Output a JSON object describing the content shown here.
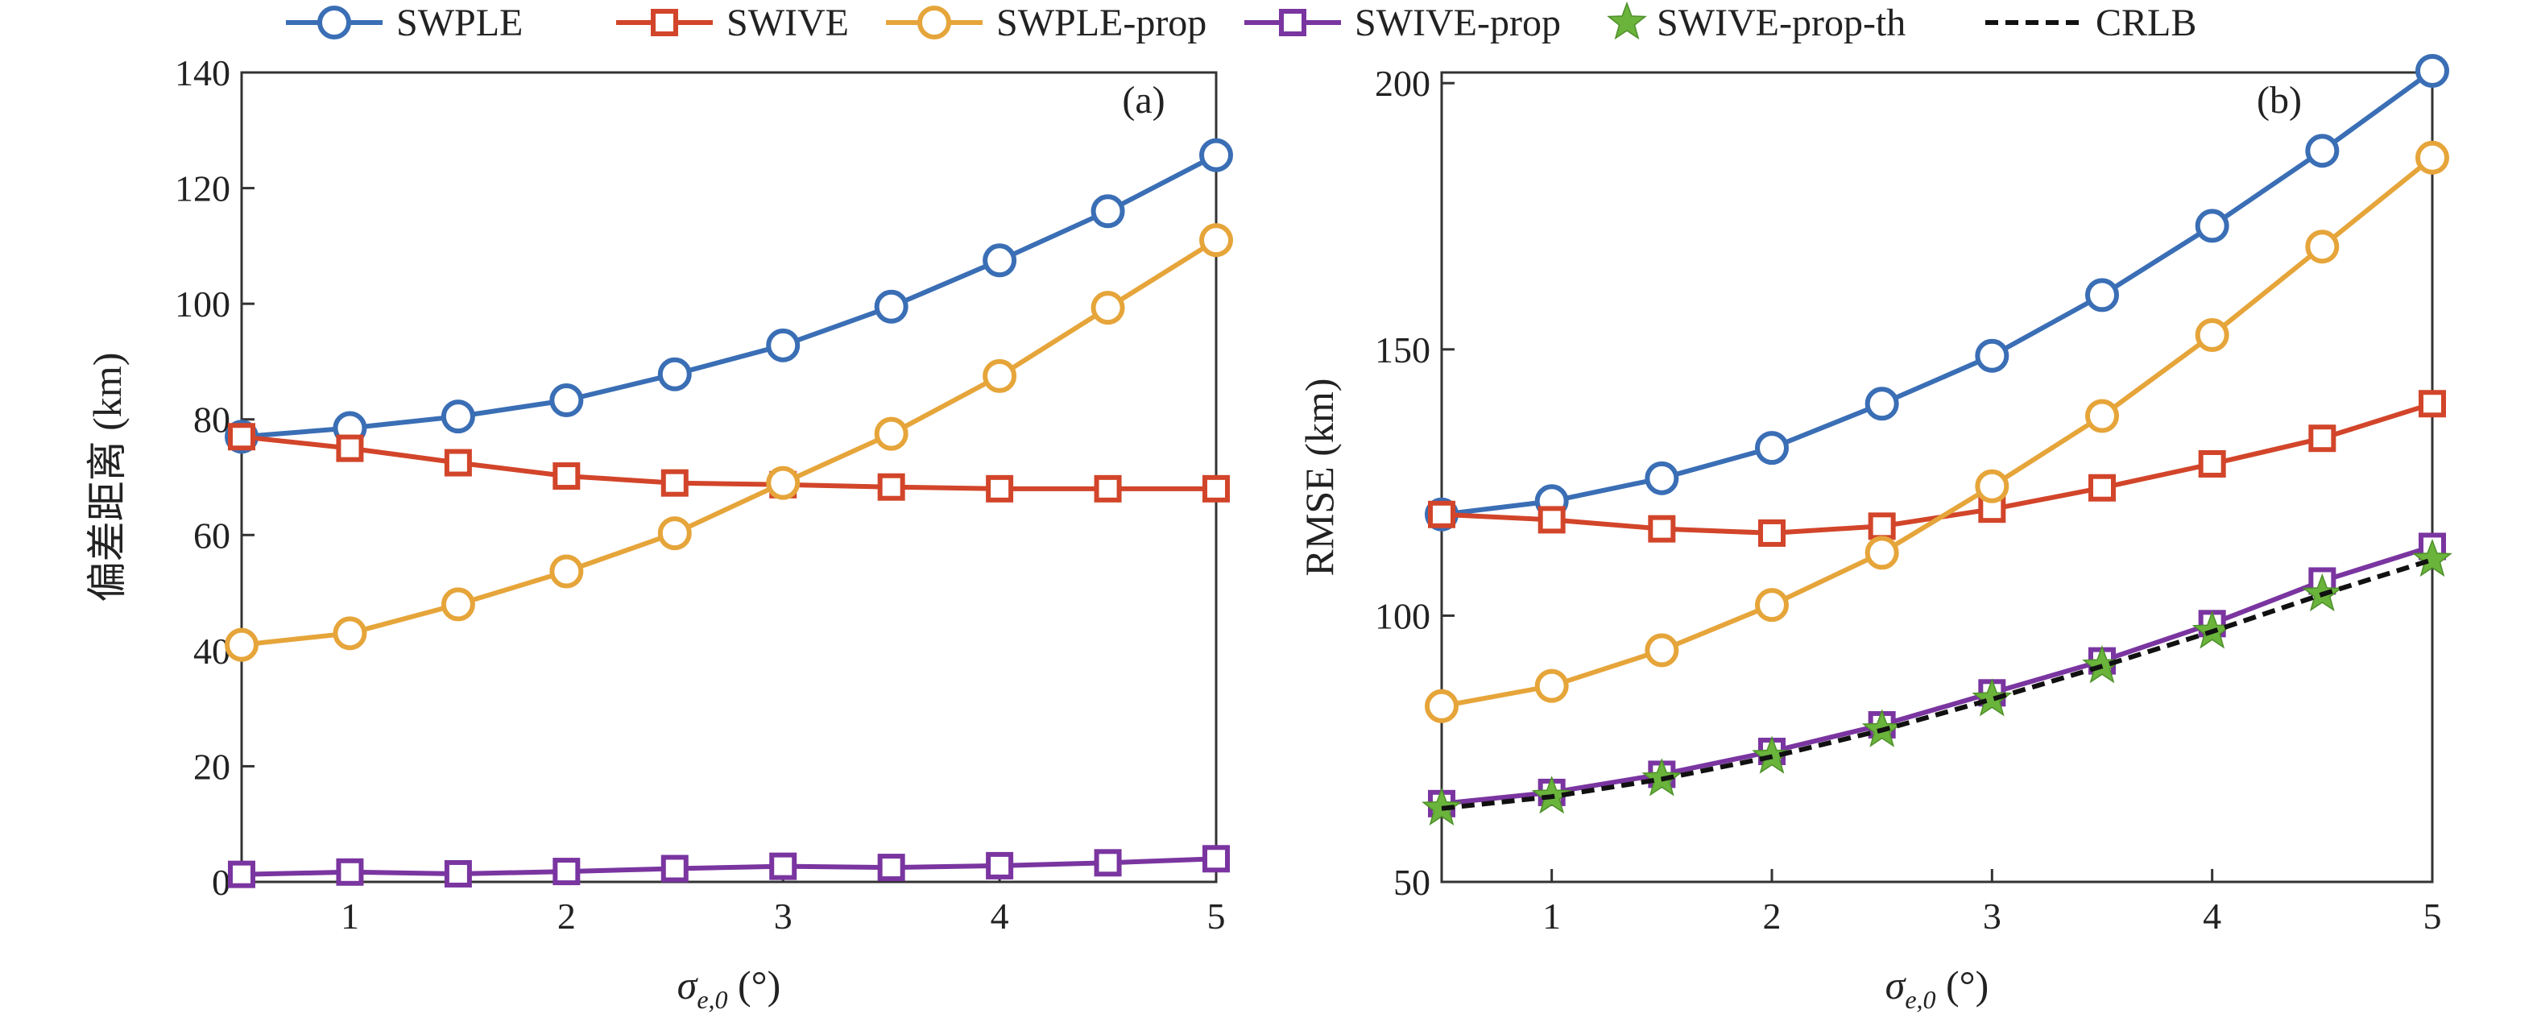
{
  "colors": {
    "SWPLE": "#3a6eb5",
    "SWIVE": "#d2452a",
    "SWPLE-prop": "#e6a53a",
    "SWIVE-prop": "#7a35a0",
    "SWIVE-prop-th": "#6ab43c",
    "CRLB": "#111111"
  },
  "legend": {
    "items": [
      {
        "label": "SWPLE",
        "series": "SWPLE",
        "marker": "circle",
        "dash": false
      },
      {
        "label": "SWIVE",
        "series": "SWIVE",
        "marker": "square",
        "dash": false
      },
      {
        "label": "SWPLE-prop",
        "series": "SWPLE-prop",
        "marker": "circle",
        "dash": false
      },
      {
        "label": "SWIVE-prop",
        "series": "SWIVE-prop",
        "marker": "square",
        "dash": false
      },
      {
        "label": "SWIVE-prop-th",
        "series": "SWIVE-prop-th",
        "marker": "star",
        "dash": false,
        "line": false
      },
      {
        "label": "CRLB",
        "series": "CRLB",
        "marker": "none",
        "dash": true
      }
    ]
  },
  "chart_data": [
    {
      "type": "line",
      "panel_label": "(a)",
      "xlabel": "σe,0 (°)",
      "xlabel_main": "σ",
      "xlabel_sub": "e,0",
      "xlabel_unit": " (°)",
      "ylabel": "偏差距离 (km)",
      "xlim": [
        0.5,
        5
      ],
      "ylim": [
        0,
        140
      ],
      "xticks": [
        1,
        2,
        3,
        4,
        5
      ],
      "yticks": [
        0,
        20,
        40,
        60,
        80,
        100,
        120,
        140
      ],
      "x": [
        0.5,
        1,
        1.5,
        2,
        2.5,
        3,
        3.5,
        4,
        4.5,
        5
      ],
      "series": [
        {
          "name": "SWPLE",
          "marker": "circle",
          "values": [
            77,
            78.5,
            80.5,
            83.3,
            87.8,
            92.8,
            99.5,
            107.5,
            116,
            125.7
          ]
        },
        {
          "name": "SWIVE",
          "marker": "square",
          "values": [
            77,
            75,
            72.5,
            70.2,
            69,
            68.7,
            68.3,
            68,
            68,
            68
          ]
        },
        {
          "name": "SWPLE-prop",
          "marker": "circle",
          "values": [
            41,
            43,
            48,
            53.7,
            60.3,
            69,
            77.5,
            87.5,
            99.3,
            111
          ]
        },
        {
          "name": "SWIVE-prop",
          "marker": "square",
          "values": [
            1.3,
            1.7,
            1.4,
            1.8,
            2.3,
            2.7,
            2.5,
            2.8,
            3.3,
            4
          ]
        }
      ]
    },
    {
      "type": "line",
      "panel_label": "(b)",
      "xlabel": "σe,0 (°)",
      "xlabel_main": "σ",
      "xlabel_sub": "e,0",
      "xlabel_unit": " (°)",
      "ylabel": "RMSE (km)",
      "xlim": [
        0.5,
        5
      ],
      "ylim": [
        50,
        202
      ],
      "xticks": [
        1,
        2,
        3,
        4,
        5
      ],
      "yticks": [
        50,
        100,
        150,
        200
      ],
      "x": [
        0.5,
        1,
        1.5,
        2,
        2.5,
        3,
        3.5,
        4,
        4.5,
        5
      ],
      "series": [
        {
          "name": "SWPLE",
          "marker": "circle",
          "values": [
            119,
            121.5,
            125.8,
            131.5,
            139.8,
            148.8,
            160.2,
            173.2,
            187.3,
            202.3
          ]
        },
        {
          "name": "SWIVE",
          "marker": "square",
          "values": [
            119,
            118,
            116.3,
            115.5,
            116.8,
            120,
            124,
            128.5,
            133.3,
            139.8
          ]
        },
        {
          "name": "SWPLE-prop",
          "marker": "circle",
          "values": [
            83,
            86.8,
            93.5,
            102,
            111.8,
            124.3,
            137.5,
            152.7,
            169.3,
            186
          ]
        },
        {
          "name": "SWIVE-prop",
          "marker": "square",
          "values": [
            64.7,
            66.8,
            70.2,
            74.5,
            79.5,
            85.5,
            91.5,
            98.5,
            106.5,
            113
          ]
        },
        {
          "name": "SWIVE-prop-th",
          "marker": "star",
          "line": false,
          "values": [
            63.8,
            66,
            69.3,
            73.5,
            78.5,
            84.3,
            90.5,
            97,
            104,
            110.5
          ]
        },
        {
          "name": "CRLB",
          "marker": "none",
          "dash": true,
          "values": [
            63.8,
            66,
            69.3,
            73.5,
            78.5,
            84.3,
            90.5,
            97,
            104,
            110.5
          ]
        }
      ]
    }
  ]
}
